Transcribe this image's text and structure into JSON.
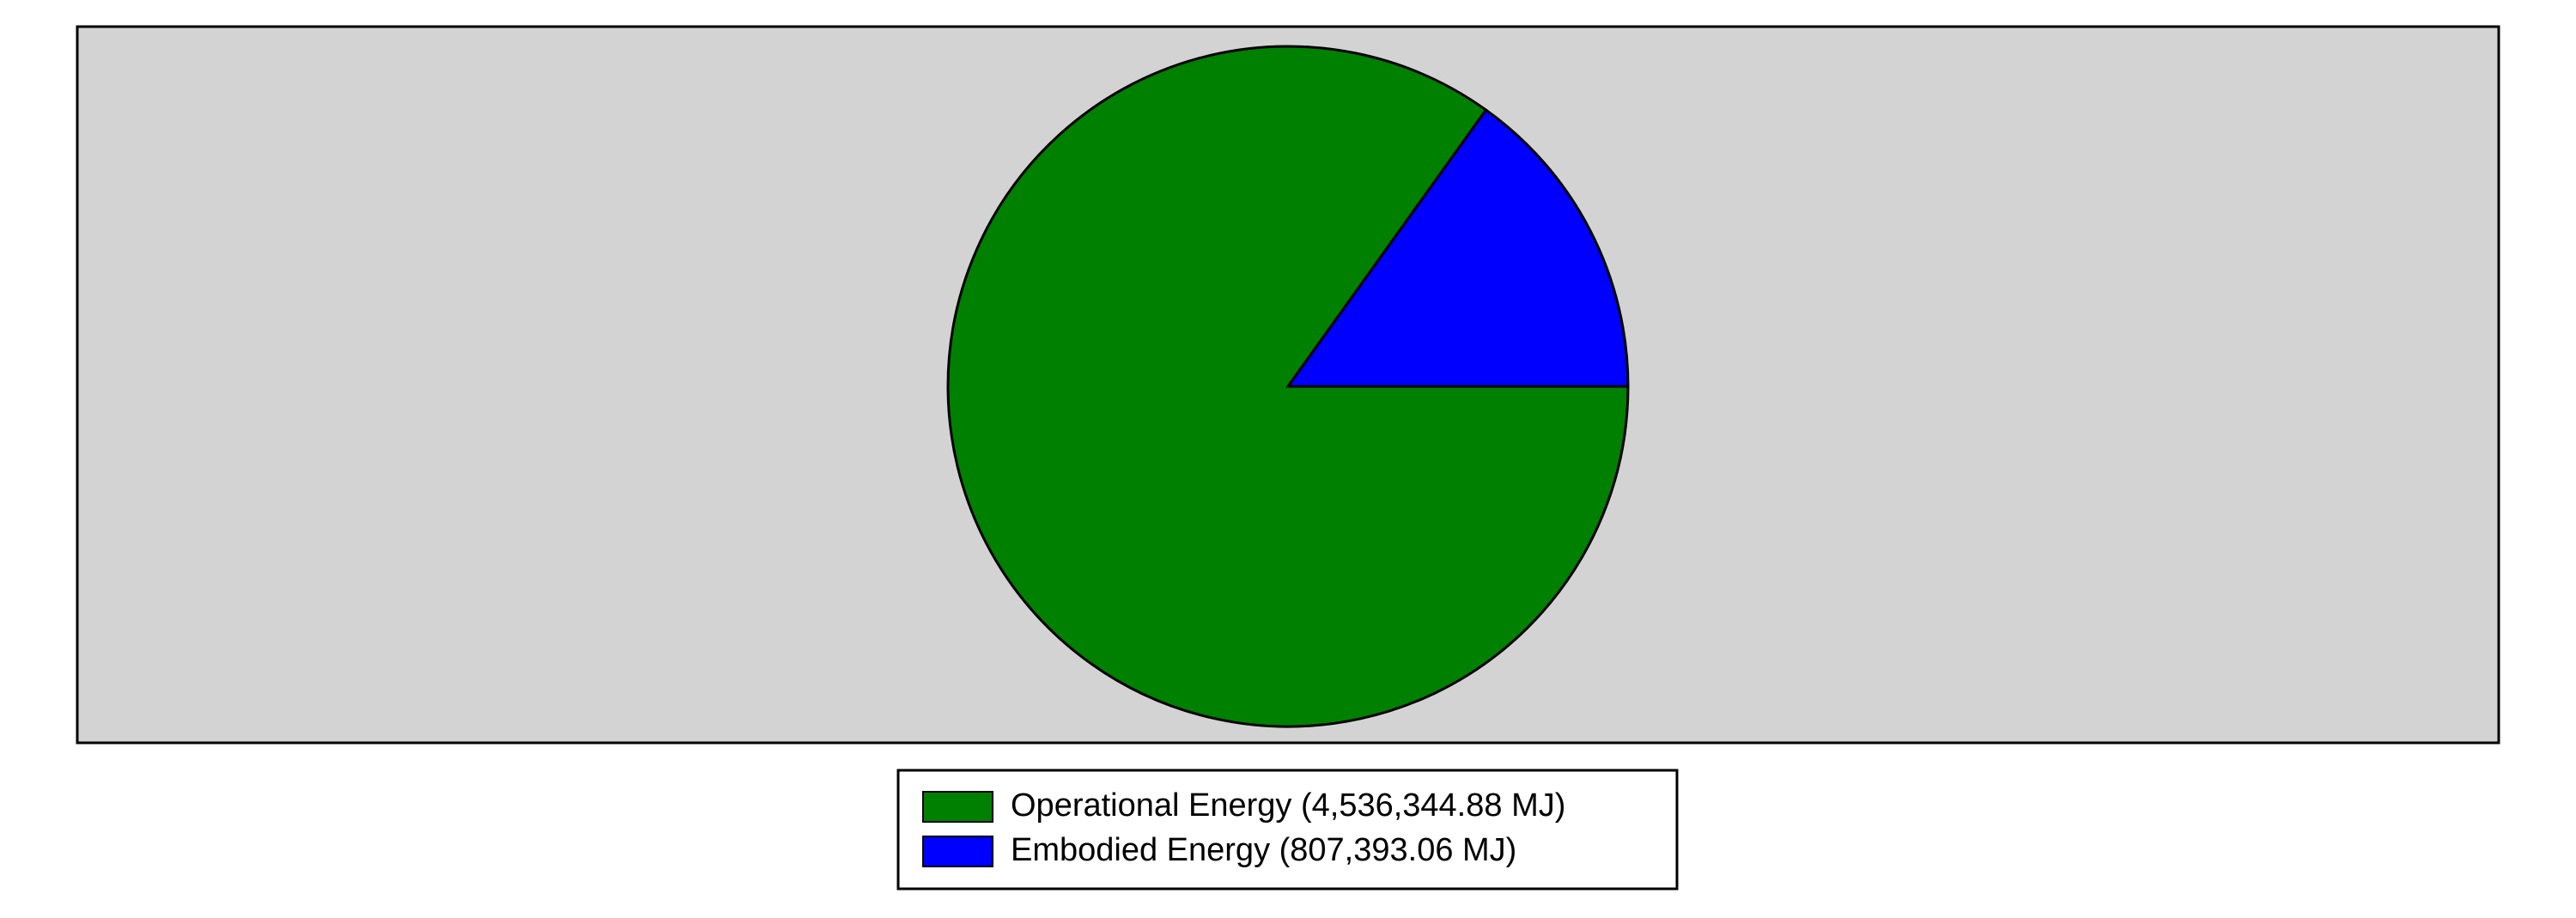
{
  "chart_data": {
    "type": "pie",
    "categories": [
      "Operational Energy (4,536,344.88 MJ)",
      "Embodied Energy (807,393.06 MJ)"
    ],
    "values": [
      4536344.88,
      807393.06
    ],
    "colors": [
      "#008000",
      "#0000ff"
    ],
    "legend": "bottom"
  }
}
